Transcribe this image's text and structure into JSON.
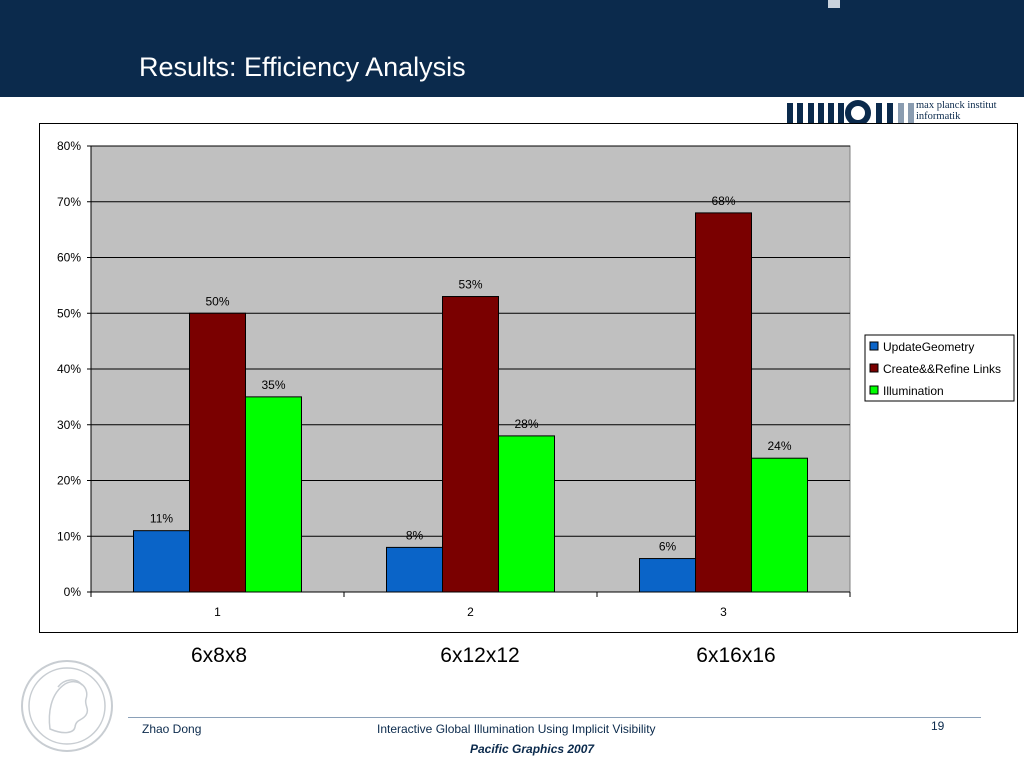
{
  "slide": {
    "title": "Results: Efficiency Analysis",
    "logo_text_line1": "max planck institut",
    "logo_text_line2": "informatik",
    "category_captions": [
      "6x8x8",
      "6x12x12",
      "6x16x16"
    ],
    "footer": {
      "author": "Zhao Dong",
      "talk_title": "Interactive Global Illumination Using Implicit Visibility",
      "page_number": "19",
      "conference": "Pacific Graphics 2007"
    }
  },
  "chart_data": {
    "type": "bar",
    "categories": [
      "1",
      "2",
      "3"
    ],
    "series": [
      {
        "name": "UpdateGeometry",
        "values": [
          11,
          8,
          6
        ],
        "labels": [
          "11%",
          "8%",
          "6%"
        ],
        "color": "#0a64c8"
      },
      {
        "name": "Create&&Refine Links",
        "values": [
          50,
          53,
          68
        ],
        "labels": [
          "50%",
          "53%",
          "68%"
        ],
        "color": "#7a0000"
      },
      {
        "name": "Illumination",
        "values": [
          35,
          28,
          24
        ],
        "labels": [
          "35%",
          "28%",
          "24%"
        ],
        "color": "#00ff00"
      }
    ],
    "ylim": [
      0,
      80
    ],
    "yticks": [
      0,
      10,
      20,
      30,
      40,
      50,
      60,
      70,
      80
    ],
    "ytick_labels": [
      "0%",
      "10%",
      "20%",
      "30%",
      "40%",
      "50%",
      "60%",
      "70%",
      "80%"
    ],
    "grid": true,
    "plot_background": "#c0c0c0",
    "legend_position": "right"
  }
}
